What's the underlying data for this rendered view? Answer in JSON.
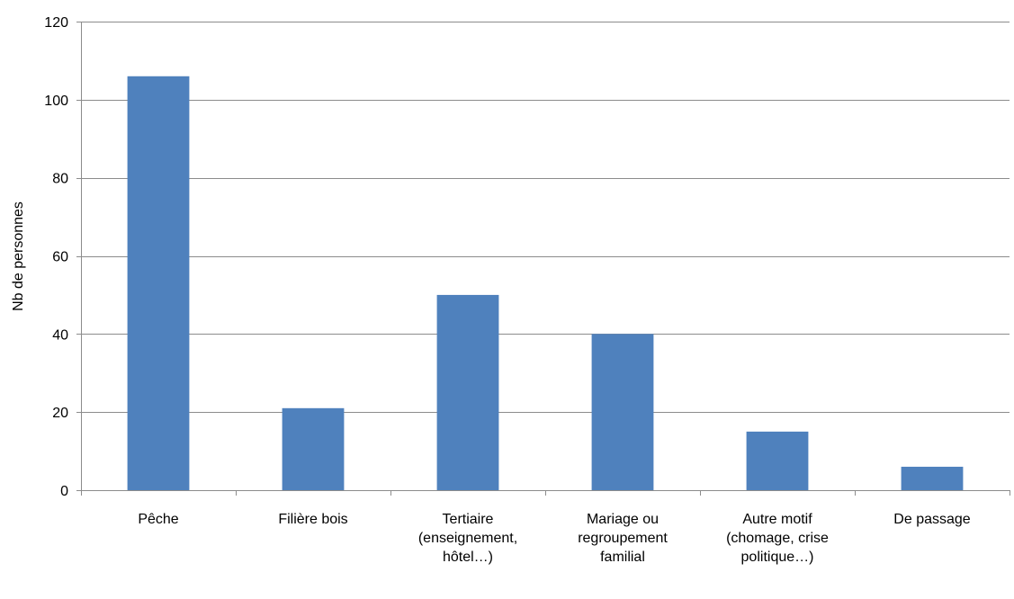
{
  "chart_data": {
    "type": "bar",
    "ylabel": "Nb de personnes",
    "xlabel": "",
    "ylim": [
      0,
      120
    ],
    "yticks": [
      "0",
      "20",
      "40",
      "60",
      "80",
      "100",
      "120"
    ],
    "grid": true,
    "legend": "none",
    "bar_color": "#4f81bd",
    "categories": [
      [
        "Pêche"
      ],
      [
        "Filière bois"
      ],
      [
        "Tertiaire",
        "(enseignement,",
        "hôtel…)"
      ],
      [
        "Mariage ou",
        "regroupement",
        "familial"
      ],
      [
        "Autre motif",
        "(chomage, crise",
        "politique…)"
      ],
      [
        "De passage"
      ]
    ],
    "values": [
      106,
      21,
      50,
      40,
      15,
      6
    ]
  }
}
